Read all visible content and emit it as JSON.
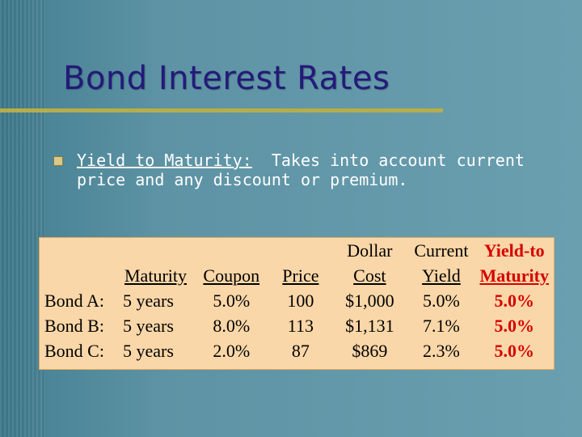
{
  "slide": {
    "title": "Bond Interest Rates",
    "bullet": {
      "term": "Yield to Maturity:",
      "rest": "  Takes into account current price and any discount or premium."
    }
  },
  "table": {
    "header1": [
      "",
      "",
      "",
      "",
      "Dollar",
      "Current",
      "Yield-to"
    ],
    "header2": [
      "",
      "Maturity",
      "Coupon",
      "Price",
      "Cost",
      "Yield",
      "Maturity"
    ],
    "rows": [
      [
        "Bond A:",
        "5 years",
        "5.0%",
        "100",
        "$1,000",
        "5.0%",
        "5.0%"
      ],
      [
        "Bond B:",
        "5 years",
        "8.0%",
        "113",
        "$1,131",
        "7.1%",
        "5.0%"
      ],
      [
        "Bond C:",
        "5 years",
        "2.0%",
        "87",
        "$869",
        "2.3%",
        "5.0%"
      ]
    ]
  },
  "colors": {
    "title": "#241a7a",
    "rule": "#b6ad4a",
    "table_bg": "#fad7a8",
    "highlight": "#d60000"
  }
}
